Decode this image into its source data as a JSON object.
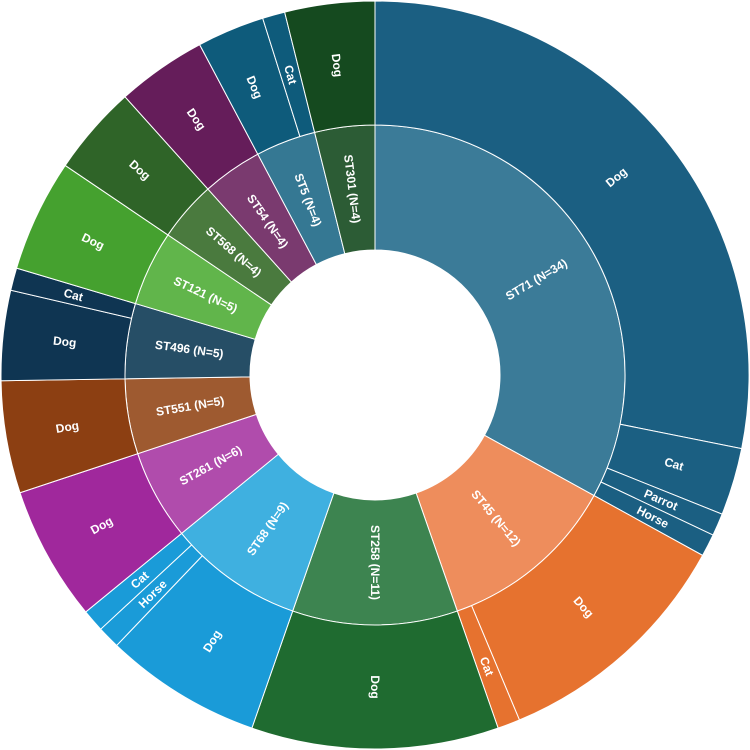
{
  "chart_data": {
    "type": "sunburst",
    "title": "",
    "groups": [
      {
        "label": "ST71 (N=34)",
        "value": 34,
        "color": "#1b5f82",
        "inner_color": "#3b7b98",
        "children": [
          {
            "label": "Dog",
            "value": 29
          },
          {
            "label": "Cat",
            "value": 3
          },
          {
            "label": "Parrot",
            "value": 1
          },
          {
            "label": "Horse",
            "value": 1
          }
        ]
      },
      {
        "label": "ST45 (N=12)",
        "value": 12,
        "color": "#e6722f",
        "inner_color": "#ee8d5c",
        "children": [
          {
            "label": "Dog",
            "value": 11
          },
          {
            "label": "Cat",
            "value": 1
          }
        ]
      },
      {
        "label": "ST258 (N=11)",
        "value": 11,
        "color": "#1f6b30",
        "inner_color": "#3d8450",
        "children": [
          {
            "label": "Dog",
            "value": 11
          }
        ]
      },
      {
        "label": "ST68 (N=9)",
        "value": 9,
        "color": "#1a9bd8",
        "inner_color": "#3fb0e0",
        "children": [
          {
            "label": "Dog",
            "value": 7
          },
          {
            "label": "Horse",
            "value": 1
          },
          {
            "label": "Cat",
            "value": 1
          }
        ]
      },
      {
        "label": "ST261 (N=6)",
        "value": 6,
        "color": "#a0289c",
        "inner_color": "#b04cac",
        "children": [
          {
            "label": "Dog",
            "value": 6
          }
        ]
      },
      {
        "label": "ST551 (N=5)",
        "value": 5,
        "color": "#8c3f12",
        "inner_color": "#9e5a30",
        "children": [
          {
            "label": "Dog",
            "value": 5
          }
        ]
      },
      {
        "label": "ST496 (N=5)",
        "value": 5,
        "color": "#0f3552",
        "inner_color": "#264e66",
        "children": [
          {
            "label": "Dog",
            "value": 4
          },
          {
            "label": "Cat",
            "value": 1
          }
        ]
      },
      {
        "label": "ST121 (N=5)",
        "value": 5,
        "color": "#45a12f",
        "inner_color": "#61b54b",
        "children": [
          {
            "label": "Dog",
            "value": 5
          }
        ]
      },
      {
        "label": "ST568 (N=4)",
        "value": 4,
        "color": "#2f6428",
        "inner_color": "#4a7a3e",
        "children": [
          {
            "label": "Dog",
            "value": 4
          }
        ]
      },
      {
        "label": "ST54 (N=4)",
        "value": 4,
        "color": "#651d5a",
        "inner_color": "#7a3a6f",
        "children": [
          {
            "label": "Dog",
            "value": 4
          }
        ]
      },
      {
        "label": "ST5 (N=4)",
        "value": 4,
        "color": "#0e5b7b",
        "inner_color": "#357893",
        "children": [
          {
            "label": "Dog",
            "value": 3
          },
          {
            "label": "Cat",
            "value": 1
          }
        ]
      },
      {
        "label": "ST301 (N=4)",
        "value": 4,
        "color": "#154a1f",
        "inner_color": "#2c5c35",
        "children": [
          {
            "label": "Dog",
            "value": 4
          }
        ]
      }
    ]
  }
}
